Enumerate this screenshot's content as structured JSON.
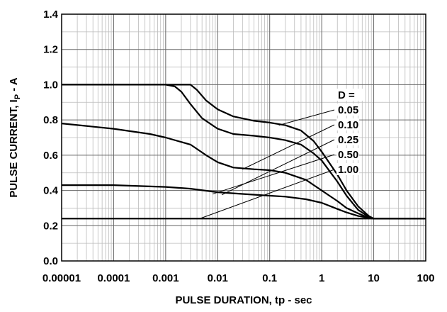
{
  "chart_data": {
    "type": "line",
    "x_scale": "log",
    "xlabel": "PULSE DURATION, tp - sec",
    "ylabel": "PULSE CURRENT, I",
    "ylabel_sub": "P",
    "ylabel_suffix": " - A",
    "xlim": [
      1e-05,
      100
    ],
    "ylim": [
      0.0,
      1.4
    ],
    "grid": true,
    "x_ticks": [
      {
        "v": 1e-05,
        "label": "0.00001"
      },
      {
        "v": 0.0001,
        "label": "0.0001"
      },
      {
        "v": 0.001,
        "label": "0.001"
      },
      {
        "v": 0.01,
        "label": "0.01"
      },
      {
        "v": 0.1,
        "label": "0.1"
      },
      {
        "v": 1,
        "label": "1"
      },
      {
        "v": 10,
        "label": "10"
      },
      {
        "v": 100,
        "label": "100"
      }
    ],
    "y_ticks": [
      {
        "v": 0.0,
        "label": "0.0"
      },
      {
        "v": 0.2,
        "label": "0.2"
      },
      {
        "v": 0.4,
        "label": "0.4"
      },
      {
        "v": 0.6,
        "label": "0.6"
      },
      {
        "v": 0.8,
        "label": "0.8"
      },
      {
        "v": 1.0,
        "label": "1.0"
      },
      {
        "v": 1.2,
        "label": "1.2"
      },
      {
        "v": 1.4,
        "label": "1.4"
      }
    ],
    "duty_header": "D =",
    "series": [
      {
        "name": "0.05",
        "points": [
          [
            1e-05,
            1.0
          ],
          [
            0.001,
            1.0
          ],
          [
            0.003,
            1.0
          ],
          [
            0.004,
            0.97
          ],
          [
            0.006,
            0.91
          ],
          [
            0.01,
            0.86
          ],
          [
            0.02,
            0.82
          ],
          [
            0.05,
            0.795
          ],
          [
            0.1,
            0.785
          ],
          [
            0.2,
            0.77
          ],
          [
            0.4,
            0.74
          ],
          [
            0.7,
            0.68
          ],
          [
            1,
            0.62
          ],
          [
            2,
            0.49
          ],
          [
            3,
            0.4
          ],
          [
            5,
            0.31
          ],
          [
            8,
            0.255
          ],
          [
            10,
            0.24
          ],
          [
            100,
            0.24
          ]
        ]
      },
      {
        "name": "0.10",
        "points": [
          [
            1e-05,
            1.0
          ],
          [
            0.001,
            1.0
          ],
          [
            0.0015,
            0.99
          ],
          [
            0.002,
            0.96
          ],
          [
            0.003,
            0.89
          ],
          [
            0.005,
            0.81
          ],
          [
            0.01,
            0.75
          ],
          [
            0.02,
            0.72
          ],
          [
            0.05,
            0.71
          ],
          [
            0.1,
            0.7
          ],
          [
            0.2,
            0.685
          ],
          [
            0.4,
            0.66
          ],
          [
            0.7,
            0.61
          ],
          [
            1,
            0.57
          ],
          [
            2,
            0.45
          ],
          [
            3,
            0.37
          ],
          [
            5,
            0.29
          ],
          [
            8,
            0.25
          ],
          [
            10,
            0.24
          ],
          [
            100,
            0.24
          ]
        ]
      },
      {
        "name": "0.25",
        "points": [
          [
            1e-05,
            0.78
          ],
          [
            0.0001,
            0.75
          ],
          [
            0.0005,
            0.72
          ],
          [
            0.001,
            0.7
          ],
          [
            0.003,
            0.66
          ],
          [
            0.006,
            0.6
          ],
          [
            0.01,
            0.56
          ],
          [
            0.02,
            0.53
          ],
          [
            0.05,
            0.52
          ],
          [
            0.1,
            0.515
          ],
          [
            0.2,
            0.5
          ],
          [
            0.5,
            0.46
          ],
          [
            1,
            0.4
          ],
          [
            2,
            0.34
          ],
          [
            3,
            0.3
          ],
          [
            5,
            0.27
          ],
          [
            8,
            0.245
          ],
          [
            10,
            0.24
          ],
          [
            100,
            0.24
          ]
        ]
      },
      {
        "name": "0.50",
        "points": [
          [
            1e-05,
            0.43
          ],
          [
            0.0001,
            0.43
          ],
          [
            0.001,
            0.42
          ],
          [
            0.003,
            0.41
          ],
          [
            0.01,
            0.39
          ],
          [
            0.03,
            0.38
          ],
          [
            0.1,
            0.37
          ],
          [
            0.2,
            0.365
          ],
          [
            0.5,
            0.35
          ],
          [
            1,
            0.33
          ],
          [
            2,
            0.295
          ],
          [
            3,
            0.275
          ],
          [
            5,
            0.255
          ],
          [
            10,
            0.24
          ],
          [
            100,
            0.24
          ]
        ]
      },
      {
        "name": "1.00",
        "points": [
          [
            1e-05,
            0.24
          ],
          [
            100,
            0.24
          ]
        ]
      }
    ],
    "leaders": [
      {
        "label": "0.05",
        "to": [
          0.15,
          0.77
        ]
      },
      {
        "label": "0.10",
        "to": [
          0.03,
          0.52
        ]
      },
      {
        "label": "0.25",
        "to": [
          0.012,
          0.375
        ]
      },
      {
        "label": "0.50",
        "to": [
          0.008,
          0.38
        ]
      },
      {
        "label": "1.00",
        "to": [
          0.0045,
          0.24
        ]
      }
    ]
  }
}
